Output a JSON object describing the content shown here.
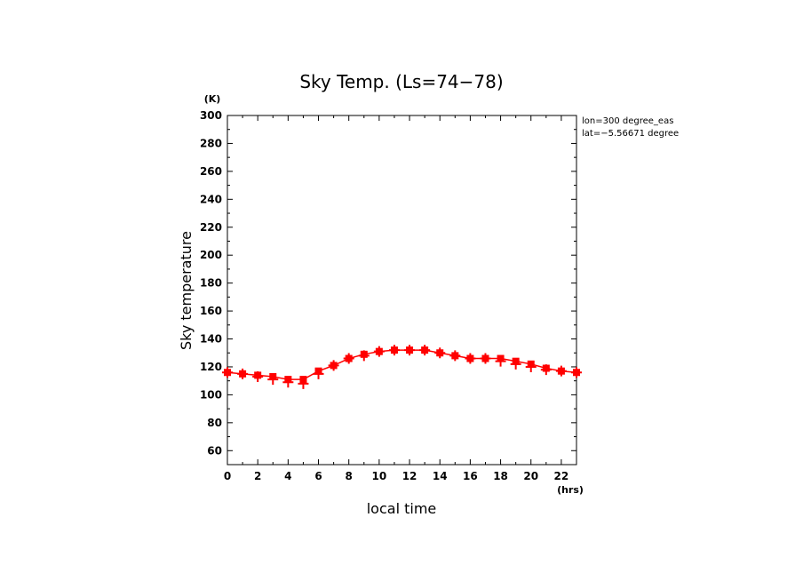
{
  "chart_data": {
    "type": "line",
    "title": "Sky Temp. (Ls=74−78)",
    "xlabel": "local time",
    "ylabel": "Sky temperature",
    "x_unit": "(hrs)",
    "y_unit": "(K)",
    "xlim": [
      0,
      23
    ],
    "ylim": [
      50,
      300
    ],
    "x_ticks": [
      0,
      2,
      4,
      6,
      8,
      10,
      12,
      14,
      16,
      18,
      20,
      22
    ],
    "y_ticks": [
      60,
      80,
      100,
      120,
      140,
      160,
      180,
      200,
      220,
      240,
      260,
      280,
      300
    ],
    "grid": false,
    "annotations": [
      "lon=300 degree_eas",
      "lat=−5.56671 degree"
    ],
    "color": "#ff0000",
    "series": [
      {
        "marker": "square",
        "x": [
          0,
          1,
          2,
          3,
          4,
          5,
          6,
          7,
          8,
          9,
          10,
          11,
          12,
          13,
          14,
          15,
          16,
          17,
          18,
          19,
          20,
          21,
          22,
          23
        ],
        "y": [
          116,
          115,
          114,
          113,
          111,
          111,
          117,
          121,
          126,
          129,
          131,
          132,
          132,
          132,
          130,
          128,
          126,
          126,
          126,
          124,
          122,
          119,
          117,
          116
        ]
      },
      {
        "marker": "plus",
        "x": [
          0,
          1,
          2,
          3,
          4,
          5,
          6,
          7,
          8,
          9,
          10,
          11,
          12,
          13,
          14,
          15,
          16,
          17,
          18,
          19,
          20,
          21,
          22,
          23
        ],
        "y": [
          116,
          115,
          113,
          111,
          109,
          108,
          115,
          121,
          126,
          128,
          131,
          132,
          132,
          132,
          130,
          128,
          126,
          126,
          124,
          122,
          120,
          118,
          117,
          116
        ]
      }
    ]
  }
}
